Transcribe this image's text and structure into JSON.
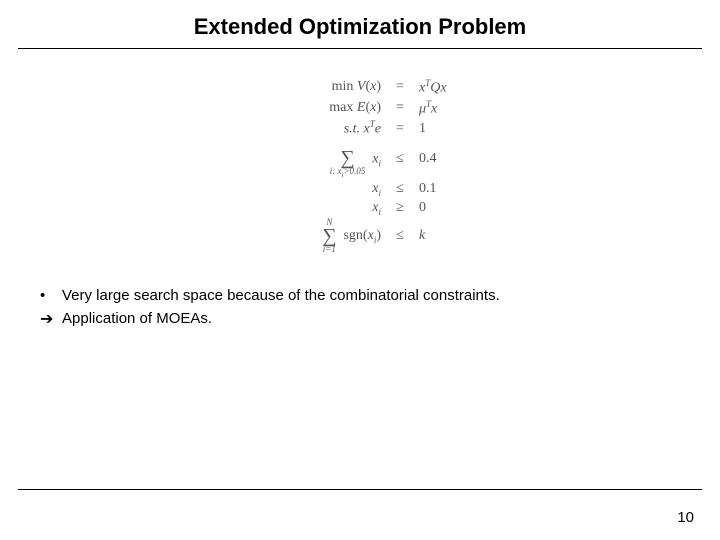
{
  "title": "Extended Optimization Problem",
  "math": {
    "r1": {
      "lhs_prefix": "min ",
      "lhs_func": "V",
      "lhs_arg": "x",
      "rel": "=",
      "rhs_html": "x^T Q x"
    },
    "r2": {
      "lhs_prefix": "max ",
      "lhs_func": "E",
      "lhs_arg": "x",
      "rel": "=",
      "rhs_html": "μ^T x"
    },
    "r3": {
      "lhs_prefix": "s.t. ",
      "lhs_html": "x^T e",
      "rel": "=",
      "rhs": "1"
    },
    "r4": {
      "sum_bot": "i: x_i>0.05",
      "term": "x_i",
      "rel": "≤",
      "rhs": "0.4"
    },
    "r5": {
      "term": "x_i",
      "rel": "≤",
      "rhs": "0.1"
    },
    "r6": {
      "term": "x_i",
      "rel": "≥",
      "rhs": "0"
    },
    "r7": {
      "sum_top": "N",
      "sum_bot": "i=1",
      "term_prefix": "sgn(",
      "term_arg": "x_i",
      "term_suffix": ")",
      "rel": "≤",
      "rhs": "k"
    }
  },
  "bullets": {
    "b1": "Very large search space because of the combinatorial constraints.",
    "b2": "Application of MOEAs."
  },
  "page_number": "10",
  "colors": {
    "text": "#000000",
    "math": "#555555",
    "bg": "#ffffff",
    "rule": "#000000"
  },
  "fonts": {
    "body": "Verdana",
    "math": "Times New Roman",
    "title_size_pt": 22,
    "body_size_pt": 15,
    "math_size_pt": 14
  }
}
